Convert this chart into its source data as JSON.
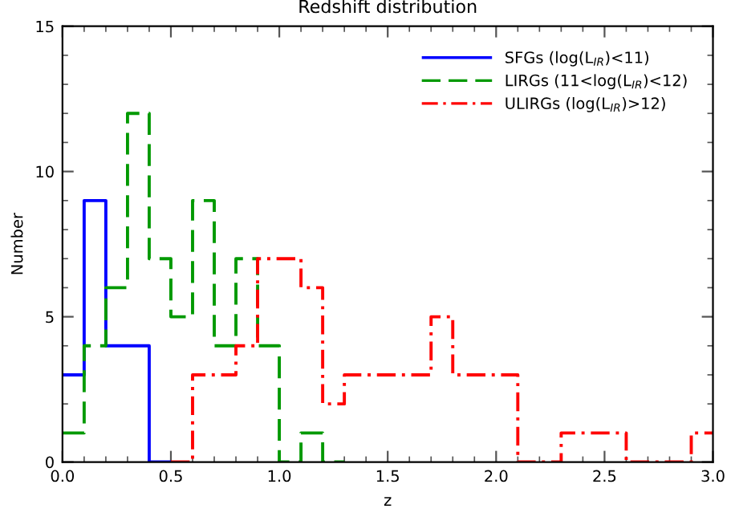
{
  "chart_data": {
    "type": "step",
    "title": "Redshift distribution",
    "xlabel": "z",
    "ylabel": "Number",
    "xlim": [
      0,
      3
    ],
    "ylim": [
      0,
      15
    ],
    "xticks": [
      {
        "value": 0,
        "label": "0.0"
      },
      {
        "value": 0.5,
        "label": "0.5"
      },
      {
        "value": 1,
        "label": "1.0"
      },
      {
        "value": 1.5,
        "label": "1.5"
      },
      {
        "value": 2,
        "label": "2.0"
      },
      {
        "value": 2.5,
        "label": "2.5"
      },
      {
        "value": 3,
        "label": "3.0"
      }
    ],
    "yticks": [
      0,
      5,
      10,
      15
    ],
    "legend": "top right",
    "series": [
      {
        "name": "SFGs (log(L$_{IR}$)<11)",
        "color": "#0000ff",
        "line_style": "solid",
        "x": [
          0,
          0.1,
          0.2,
          0.3,
          0.4,
          0.5
        ],
        "values": [
          3,
          9,
          4,
          4,
          0,
          0
        ]
      },
      {
        "name": "LIRGs (11<log(L$_{IR}$)<12)",
        "color": "#009900",
        "line_style": "dashed",
        "x": [
          0,
          0.1,
          0.2,
          0.3,
          0.4,
          0.5,
          0.6,
          0.7,
          0.8,
          0.9,
          1.0,
          1.1,
          1.2,
          1.3
        ],
        "values": [
          1,
          4,
          6,
          12,
          7,
          5,
          9,
          4,
          7,
          4,
          0,
          1,
          0,
          0
        ]
      },
      {
        "name": "ULIRGs (log(L$_{IR}$)>12)",
        "color": "#ff0000",
        "line_style": "dashdot",
        "x": [
          0.5,
          0.6,
          0.7,
          0.8,
          0.9,
          1.0,
          1.1,
          1.2,
          1.3,
          1.4,
          1.5,
          1.6,
          1.7,
          1.8,
          1.9,
          2.0,
          2.1,
          2.2,
          2.3,
          2.4,
          2.5,
          2.6,
          2.7,
          2.8,
          2.9,
          3.0
        ],
        "values": [
          0,
          3,
          3,
          4,
          7,
          7,
          6,
          2,
          3,
          3,
          3,
          3,
          5,
          3,
          3,
          3,
          0,
          0,
          1,
          1,
          1,
          0,
          0,
          0,
          1,
          1
        ]
      }
    ]
  }
}
